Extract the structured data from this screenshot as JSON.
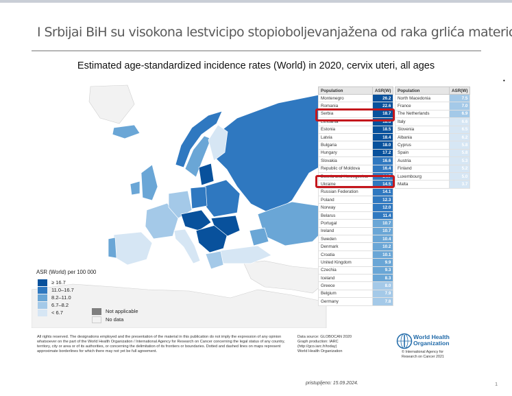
{
  "slide": {
    "title": "I Srbijai BiH su visokona lestvicipo stopioboljevanjažena od raka grlića materice",
    "subtitle": "Estimated age-standardized incidence rates (World) in 2020, cervix uteri, all ages",
    "accessed": "pristupljeno: 15.09.2024.",
    "page_number": "1",
    "margin_mark": "•"
  },
  "colors": {
    "c1": "#08519c",
    "c2": "#2f78c0",
    "c3": "#6aa6d6",
    "c4": "#a4c9e8",
    "c5": "#d6e6f4",
    "na": "#7f7f7f",
    "nodata": "#f2f2f2",
    "highlight": "#c4161c",
    "sea": "#ffffff"
  },
  "legend": {
    "title": "ASR (World) per 100 000",
    "items": [
      {
        "label": "≥ 16.7",
        "color": "#08519c"
      },
      {
        "label": "11.0–16.7",
        "color": "#2f78c0"
      },
      {
        "label": "8.2–11.0",
        "color": "#6aa6d6"
      },
      {
        "label": "6.7–8.2",
        "color": "#a4c9e8"
      },
      {
        "label": "< 6.7",
        "color": "#d6e6f4"
      }
    ],
    "not_applicable": "Not applicable",
    "no_data": "No data"
  },
  "table1": {
    "col_population": "Population",
    "col_asr": "ASR(W)",
    "rows": [
      {
        "name": "Montenegro",
        "value": "26.2",
        "color": "#08519c"
      },
      {
        "name": "Romania",
        "value": "22.6",
        "color": "#08519c"
      },
      {
        "name": "Serbia",
        "value": "18.7",
        "color": "#08519c"
      },
      {
        "name": "Lithuania",
        "value": "18.6",
        "color": "#08519c"
      },
      {
        "name": "Estonia",
        "value": "18.5",
        "color": "#08519c"
      },
      {
        "name": "Latvia",
        "value": "18.4",
        "color": "#08519c"
      },
      {
        "name": "Bulgaria",
        "value": "18.0",
        "color": "#08519c"
      },
      {
        "name": "Hungary",
        "value": "17.2",
        "color": "#08519c"
      },
      {
        "name": "Slovakia",
        "value": "16.6",
        "color": "#2f78c0"
      },
      {
        "name": "Republic of Moldova",
        "value": "16.4",
        "color": "#2f78c0"
      },
      {
        "name": "Bosnia and Herzegovina",
        "value": "14.7",
        "color": "#2f78c0"
      },
      {
        "name": "Ukraine",
        "value": "14.5",
        "color": "#2f78c0"
      },
      {
        "name": "Russian Federation",
        "value": "14.1",
        "color": "#2f78c0"
      },
      {
        "name": "Poland",
        "value": "12.3",
        "color": "#2f78c0"
      },
      {
        "name": "Norway",
        "value": "12.0",
        "color": "#2f78c0"
      },
      {
        "name": "Belarus",
        "value": "11.4",
        "color": "#2f78c0"
      },
      {
        "name": "Portugal",
        "value": "10.7",
        "color": "#6aa6d6"
      },
      {
        "name": "Ireland",
        "value": "10.7",
        "color": "#6aa6d6"
      },
      {
        "name": "Sweden",
        "value": "10.4",
        "color": "#6aa6d6"
      },
      {
        "name": "Denmark",
        "value": "10.2",
        "color": "#6aa6d6"
      },
      {
        "name": "Croatia",
        "value": "10.1",
        "color": "#6aa6d6"
      },
      {
        "name": "United Kingdom",
        "value": "9.9",
        "color": "#6aa6d6"
      },
      {
        "name": "Czechia",
        "value": "9.3",
        "color": "#6aa6d6"
      },
      {
        "name": "Iceland",
        "value": "8.3",
        "color": "#6aa6d6"
      },
      {
        "name": "Greece",
        "value": "8.0",
        "color": "#a4c9e8"
      },
      {
        "name": "Belgium",
        "value": "7.9",
        "color": "#a4c9e8"
      },
      {
        "name": "Germany",
        "value": "7.8",
        "color": "#a4c9e8"
      }
    ]
  },
  "table2": {
    "col_population": "Population",
    "col_asr": "ASR(W)",
    "rows": [
      {
        "name": "North Macedonia",
        "value": "7.5",
        "color": "#a4c9e8"
      },
      {
        "name": "France",
        "value": "7.0",
        "color": "#a4c9e8"
      },
      {
        "name": "The Netherlands",
        "value": "6.9",
        "color": "#a4c9e8"
      },
      {
        "name": "Italy",
        "value": "6.6",
        "color": "#d6e6f4"
      },
      {
        "name": "Slovenia",
        "value": "6.5",
        "color": "#d6e6f4"
      },
      {
        "name": "Albania",
        "value": "6.2",
        "color": "#d6e6f4"
      },
      {
        "name": "Cyprus",
        "value": "5.8",
        "color": "#d6e6f4"
      },
      {
        "name": "Spain",
        "value": "5.8",
        "color": "#d6e6f4"
      },
      {
        "name": "Austria",
        "value": "5.3",
        "color": "#d6e6f4"
      },
      {
        "name": "Finland",
        "value": "5.2",
        "color": "#d6e6f4"
      },
      {
        "name": "Luxembourg",
        "value": "5.0",
        "color": "#d6e6f4"
      },
      {
        "name": "Malta",
        "value": "3.7",
        "color": "#d6e6f4"
      }
    ]
  },
  "footer": {
    "disclaimer": "All rights reserved. The designations employed and the presentation of the material in this publication do not imply the expression of any opinion whatsoever on the part of the World Health Organization / International Agency for Research on Cancer concerning the legal status of any country, territory, city or area or of its authorities, or concerning the delimitation of its frontiers or boundaries. Dotted and dashed lines on maps represent approximate borderlines for which there may not yet be full agreement.",
    "source_line1": "Data source: GLOBOCAN 2020",
    "source_line2": "Graph production: IARC",
    "source_line3": "(http://gco.iarc.fr/today)",
    "source_line4": "World Health Organization",
    "who_line1": "World Health",
    "who_line2": "Organization",
    "iarc_line1": "© International Agency for",
    "iarc_line2": "Research on Cancer 2021"
  }
}
